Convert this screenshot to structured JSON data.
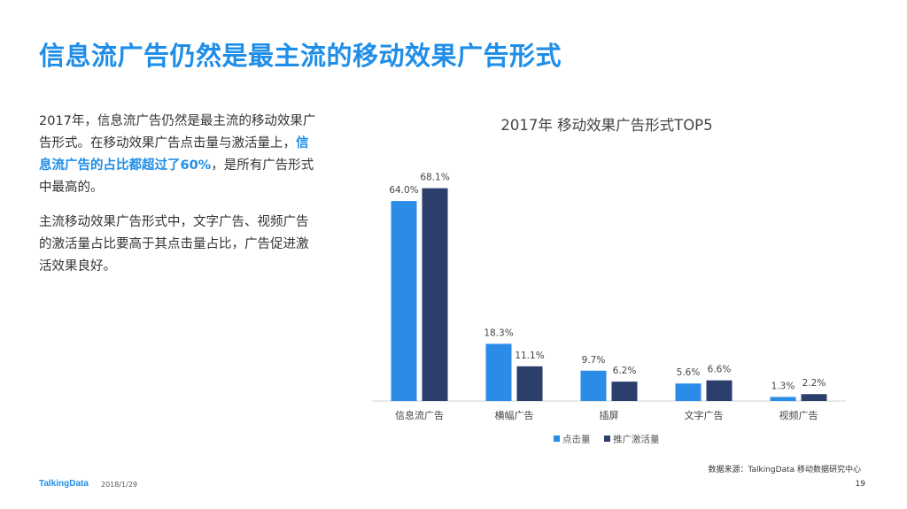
{
  "slide": {
    "title": "信息流广告仍然是最主流的移动效果广告形式",
    "para1_a": "2017年，信息流广告仍然是最主流的移动效果广告形式。在移动效果广告点击量与激活量上，",
    "para1_highlight": "信息流广告的占比都超过了60%",
    "para1_b": "，是所有广告形式中最高的。",
    "para2": "主流移动效果广告形式中，文字广告、视频广告的激活量占比要高于其点击量占比，广告促进激活效果良好。",
    "source": "数据来源：TalkingData 移动数据研究中心",
    "footer_logo": "TalkingData",
    "footer_date": "2018/1/29",
    "page_number": "19"
  },
  "chart_data": {
    "type": "bar",
    "title": "2017年 移动效果广告形式TOP5",
    "categories": [
      "信息流广告",
      "横幅广告",
      "插屏",
      "文字广告",
      "视频广告"
    ],
    "series": [
      {
        "name": "点击量",
        "values": [
          64.0,
          18.3,
          9.7,
          5.6,
          1.3
        ],
        "labels": [
          "64.0%",
          "18.3%",
          "9.7%",
          "5.6%",
          "1.3%"
        ],
        "color": "#2b8ce8"
      },
      {
        "name": "推广激活量",
        "values": [
          68.1,
          11.1,
          6.2,
          6.6,
          2.2
        ],
        "labels": [
          "68.1%",
          "11.1%",
          "6.2%",
          "6.6%",
          "2.2%"
        ],
        "color": "#2c3e6b"
      }
    ],
    "ylim": [
      0,
      100
    ],
    "grid": false,
    "legend": "bottom"
  }
}
